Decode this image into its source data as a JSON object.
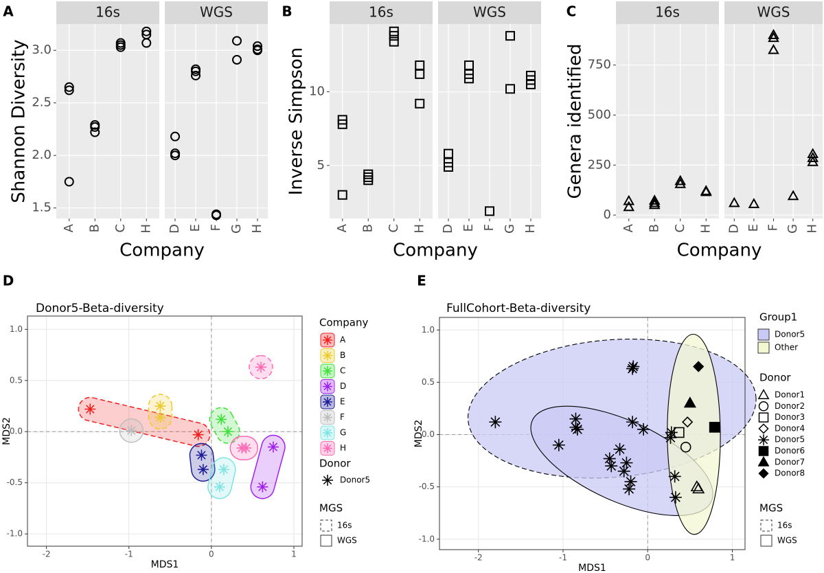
{
  "chart_data": [
    {
      "type": "strip",
      "panel": "A",
      "y_label": "Shannon Diversity",
      "x_label": "Company",
      "marker": "circle",
      "ylim": [
        1.4,
        3.25
      ],
      "yticks": [
        1.5,
        {
          "value": 2,
          "label": "2.0"
        },
        2.5,
        {
          "value": 3,
          "label": "3.0"
        }
      ],
      "grid": true,
      "facets": [
        {
          "label": "16s",
          "categories": [
            "A",
            "B",
            "C",
            "H"
          ],
          "values": [
            [
              2.65,
              2.62,
              1.75
            ],
            [
              2.29,
              2.27,
              2.22
            ],
            [
              3.07,
              3.05,
              3.03
            ],
            [
              3.18,
              3.15,
              3.07
            ]
          ]
        },
        {
          "label": "WGS",
          "categories": [
            "D",
            "E",
            "F",
            "G",
            "H"
          ],
          "values": [
            [
              2.18,
              2.02,
              2.0
            ],
            [
              2.82,
              2.8,
              2.76
            ],
            [
              1.44,
              1.43
            ],
            [
              3.09,
              2.91
            ],
            [
              3.04,
              3.01,
              3.0
            ]
          ]
        }
      ]
    },
    {
      "type": "strip",
      "panel": "B",
      "y_label": "Inverse Simpson",
      "x_label": "Company",
      "marker": "square",
      "ylim": [
        1.4,
        14.6
      ],
      "yticks": [
        5,
        10
      ],
      "grid": true,
      "facets": [
        {
          "label": "16s",
          "categories": [
            "A",
            "B",
            "C",
            "H"
          ],
          "values": [
            [
              8.1,
              7.8,
              3.0
            ],
            [
              4.4,
              4.2,
              4.0
            ],
            [
              14.1,
              13.8,
              13.4
            ],
            [
              11.8,
              11.2,
              9.2
            ]
          ]
        },
        {
          "label": "WGS",
          "categories": [
            "D",
            "E",
            "F",
            "G",
            "H"
          ],
          "values": [
            [
              5.8,
              5.2,
              4.9
            ],
            [
              11.8,
              11.2,
              10.9
            ],
            [
              1.9
            ],
            [
              13.8,
              10.2
            ],
            [
              11.1,
              10.8,
              10.5
            ]
          ]
        }
      ]
    },
    {
      "type": "strip",
      "panel": "C",
      "y_label": "Genera identified",
      "x_label": "Company",
      "marker": "triangle",
      "ylim": [
        -17,
        955
      ],
      "yticks": [
        0,
        250,
        500,
        750
      ],
      "grid": true,
      "facets": [
        {
          "label": "16s",
          "categories": [
            "A",
            "B",
            "C",
            "H"
          ],
          "values": [
            [
              70,
              40
            ],
            [
              72,
              60,
              50
            ],
            [
              170,
              155
            ],
            [
              120,
              115
            ]
          ]
        },
        {
          "label": "WGS",
          "categories": [
            "D",
            "E",
            "F",
            "G",
            "H"
          ],
          "values": [
            [
              60
            ],
            [
              55
            ],
            [
              900,
              885,
              825
            ],
            [
              95
            ],
            [
              305,
              285,
              265
            ]
          ]
        }
      ]
    },
    {
      "type": "scatter",
      "panel": "D",
      "title": "Donor5-Beta-diversity",
      "x_label": "MDS1",
      "y_label": "MDS2",
      "xlim": [
        -2.23,
        1.1
      ],
      "ylim": [
        -1.12,
        1.13
      ],
      "xticks": [
        -2,
        -1,
        0,
        1
      ],
      "yticks": [
        {
          "value": -1,
          "label": "-1.0"
        },
        -0.5,
        {
          "value": 0,
          "label": "0.0"
        },
        0.5,
        {
          "value": 1,
          "label": "1.0"
        }
      ],
      "grid": true,
      "reference_lines": true,
      "legend_title": "Company",
      "series": [
        {
          "name": "A",
          "color": "#f21f1f",
          "groups": [
            {
              "mgs": "16s",
              "x": [
                -1.47,
                -0.16
              ],
              "y": [
                0.22,
                -0.03
              ]
            }
          ]
        },
        {
          "name": "B",
          "color": "#ecc92c",
          "groups": [
            {
              "mgs": "16s",
              "x": [
                -0.62,
                -0.62
              ],
              "y": [
                0.25,
                0.14
              ]
            }
          ]
        },
        {
          "name": "C",
          "color": "#3ee03a",
          "groups": [
            {
              "mgs": "16s",
              "x": [
                0.12,
                0.2
              ],
              "y": [
                0.12,
                0.0
              ]
            }
          ]
        },
        {
          "name": "D",
          "color": "#a020f0",
          "groups": [
            {
              "mgs": "WGS",
              "x": [
                0.75,
                0.62
              ],
              "y": [
                -0.15,
                -0.54
              ]
            }
          ]
        },
        {
          "name": "E",
          "color": "#1c1c96",
          "groups": [
            {
              "mgs": "WGS",
              "x": [
                -0.12,
                -0.1
              ],
              "y": [
                -0.23,
                -0.37
              ]
            }
          ]
        },
        {
          "name": "F",
          "color": "#bdbdbd",
          "groups": [
            {
              "mgs": "WGS",
              "x": [
                -0.97
              ],
              "y": [
                0.01
              ]
            }
          ]
        },
        {
          "name": "G",
          "color": "#7fe3e3",
          "groups": [
            {
              "mgs": "WGS",
              "x": [
                0.15,
                0.1
              ],
              "y": [
                -0.37,
                -0.54
              ]
            }
          ]
        },
        {
          "name": "H",
          "color": "#ff69b4",
          "groups": [
            {
              "mgs": "16s",
              "x": [
                0.6
              ],
              "y": [
                0.63
              ]
            },
            {
              "mgs": "WGS",
              "x": [
                0.42,
                0.37
              ],
              "y": [
                -0.16,
                -0.16
              ]
            }
          ]
        }
      ],
      "donor_legend": {
        "title": "Donor",
        "items": [
          "Donor5"
        ]
      },
      "mgs_legend": {
        "title": "MGS",
        "items": [
          "16s",
          "WGS"
        ]
      }
    },
    {
      "type": "scatter",
      "panel": "E",
      "title": "FullCohort-Beta-diversity",
      "x_label": "MDS1",
      "y_label": "MDS2",
      "xlim": [
        -2.46,
        1.15
      ],
      "ylim": [
        -1.1,
        1.12
      ],
      "xticks": [
        -2,
        -1,
        0,
        1
      ],
      "yticks": [
        {
          "value": -1,
          "label": "-1.0"
        },
        -0.5,
        {
          "value": 0,
          "label": "0.0"
        },
        0.5,
        {
          "value": 1,
          "label": "1.0"
        }
      ],
      "grid": true,
      "reference_lines": true,
      "legend_title": "Donor",
      "group_legend": {
        "title": "Group1",
        "items": [
          {
            "name": "Donor5",
            "color": "#c9c9f5"
          },
          {
            "name": "Other",
            "color": "#f3f7d2"
          }
        ]
      },
      "series": [
        {
          "name": "Donor1",
          "shape": "triangle",
          "filled": false,
          "x": [
            0.58,
            0.6
          ],
          "y": [
            -0.5,
            -0.52
          ]
        },
        {
          "name": "Donor2",
          "shape": "circle",
          "filled": false,
          "x": [
            0.45
          ],
          "y": [
            -0.12
          ]
        },
        {
          "name": "Donor3",
          "shape": "square",
          "filled": false,
          "x": [
            0.37
          ],
          "y": [
            0.02
          ]
        },
        {
          "name": "Donor4",
          "shape": "diamond",
          "filled": false,
          "x": [
            0.47
          ],
          "y": [
            0.12
          ]
        },
        {
          "name": "Donor5",
          "shape": "star",
          "filled": false,
          "x": [
            -1.8,
            -0.18,
            -0.17,
            -0.85,
            -0.18,
            -0.05,
            0.28,
            -1.05,
            -0.85,
            -0.83,
            -0.45,
            -0.43,
            -0.33,
            -0.28,
            -0.25,
            -0.2,
            -0.22,
            0.27,
            0.32,
            0.33
          ],
          "y": [
            0.12,
            0.63,
            0.65,
            0.15,
            0.12,
            0.05,
            0.02,
            -0.1,
            0.07,
            0.05,
            -0.23,
            -0.3,
            -0.14,
            -0.35,
            -0.27,
            -0.45,
            -0.52,
            -0.03,
            -0.4,
            -0.6
          ],
          "mgs": [
            "16s",
            "16s",
            "16s",
            "16s",
            "16s",
            "16s",
            "16s",
            "WGS",
            "WGS",
            "WGS",
            "WGS",
            "WGS",
            "WGS",
            "WGS",
            "WGS",
            "WGS",
            "WGS",
            "WGS",
            "WGS",
            "WGS"
          ]
        },
        {
          "name": "Donor6",
          "shape": "square",
          "filled": true,
          "x": [
            0.79
          ],
          "y": [
            0.07
          ]
        },
        {
          "name": "Donor7",
          "shape": "triangle",
          "filled": true,
          "x": [
            0.5
          ],
          "y": [
            0.3
          ]
        },
        {
          "name": "Donor8",
          "shape": "diamond",
          "filled": true,
          "x": [
            0.6
          ],
          "y": [
            0.65
          ]
        }
      ],
      "mgs_legend": {
        "title": "MGS",
        "items": [
          "16s",
          "WGS"
        ]
      }
    }
  ]
}
